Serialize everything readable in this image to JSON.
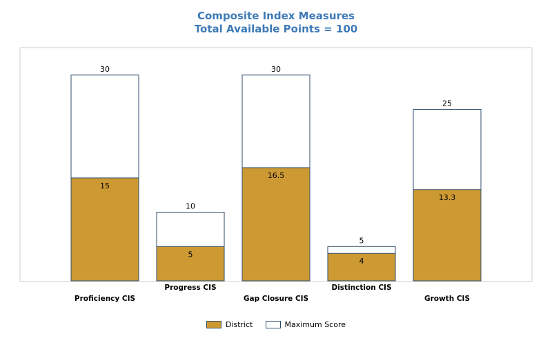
{
  "chart_data": {
    "type": "bar",
    "title": "Composite Index Measures",
    "subtitle": "Total Available Points = 100",
    "categories": [
      "Proficiency CIS",
      "Progress CIS",
      "Gap Closure CIS",
      "Distinction CIS",
      "Growth CIS"
    ],
    "series": [
      {
        "name": "District",
        "values": [
          15,
          5,
          16.5,
          4,
          13.3
        ],
        "value_labels": [
          "15",
          "5",
          "16.5",
          "4",
          "13.3"
        ],
        "color": "#cc9933"
      },
      {
        "name": "Maximum Score",
        "values": [
          30,
          10,
          30,
          5,
          25
        ],
        "value_labels": [
          "30",
          "10",
          "30",
          "5",
          "25"
        ],
        "color": "#ffffff"
      }
    ],
    "ylim": [
      0,
      34
    ],
    "grid": false,
    "legend_position": "bottom",
    "bar_outline_color": "#2f4d6b",
    "title_color": "#3e7ab7"
  }
}
